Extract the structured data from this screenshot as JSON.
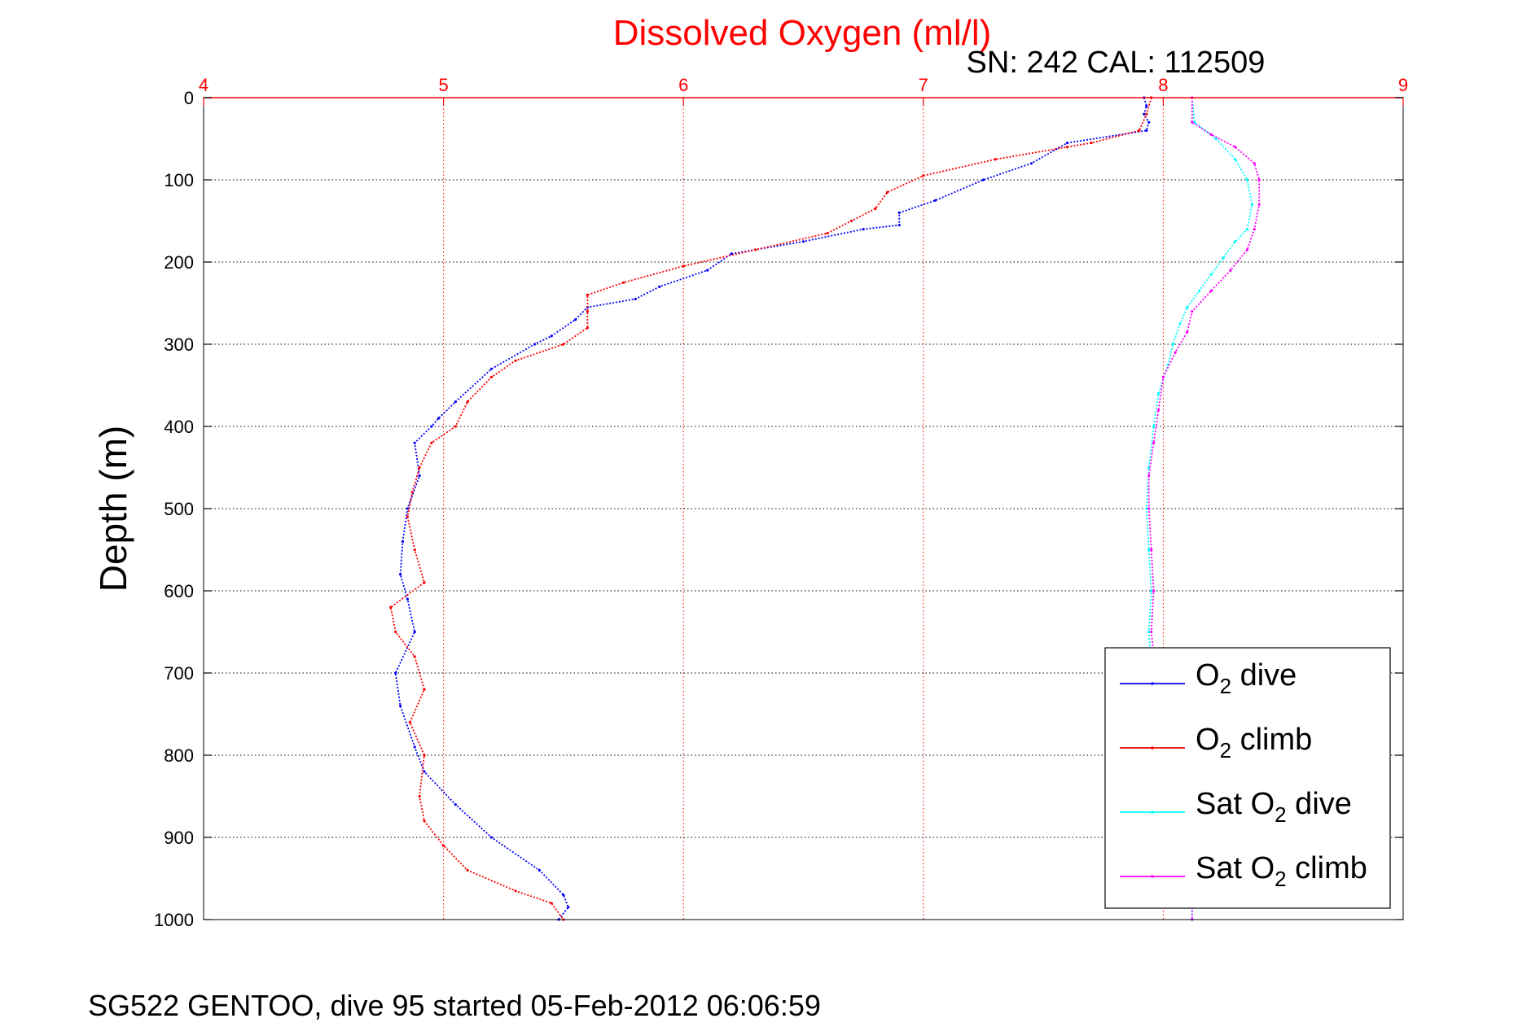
{
  "chart_data": {
    "type": "line",
    "title": "Dissolved Oxygen (ml/l)",
    "subtitle": "SN: 242  CAL: 112509",
    "ylabel": "Depth (m)",
    "footer": "SG522 GENTOO, dive 95 started 05-Feb-2012 06:06:59",
    "xlim": [
      4,
      9
    ],
    "ylim": [
      0,
      1000
    ],
    "y_reversed": true,
    "x_axis_position": "top",
    "xticks": [
      4,
      5,
      6,
      7,
      8,
      9
    ],
    "yticks": [
      0,
      100,
      200,
      300,
      400,
      500,
      600,
      700,
      800,
      900,
      1000
    ],
    "grid": true,
    "legend_position": "bottom-right",
    "series": [
      {
        "name": "O2 dive",
        "legend_main": "O",
        "legend_sub": "2",
        "legend_rest": " dive",
        "color": "#0000ff",
        "points": [
          [
            7.92,
            0
          ],
          [
            7.93,
            10
          ],
          [
            7.92,
            20
          ],
          [
            7.94,
            30
          ],
          [
            7.93,
            40
          ],
          [
            7.6,
            55
          ],
          [
            7.45,
            80
          ],
          [
            7.25,
            100
          ],
          [
            7.05,
            125
          ],
          [
            6.9,
            140
          ],
          [
            6.9,
            155
          ],
          [
            6.75,
            160
          ],
          [
            6.5,
            175
          ],
          [
            6.2,
            190
          ],
          [
            6.1,
            210
          ],
          [
            5.9,
            230
          ],
          [
            5.8,
            245
          ],
          [
            5.6,
            255
          ],
          [
            5.55,
            270
          ],
          [
            5.45,
            290
          ],
          [
            5.38,
            300
          ],
          [
            5.2,
            330
          ],
          [
            5.05,
            370
          ],
          [
            4.98,
            390
          ],
          [
            4.95,
            400
          ],
          [
            4.88,
            420
          ],
          [
            4.9,
            460
          ],
          [
            4.85,
            500
          ],
          [
            4.83,
            540
          ],
          [
            4.82,
            580
          ],
          [
            4.85,
            610
          ],
          [
            4.88,
            650
          ],
          [
            4.8,
            700
          ],
          [
            4.82,
            740
          ],
          [
            4.88,
            790
          ],
          [
            4.92,
            820
          ],
          [
            5.05,
            860
          ],
          [
            5.2,
            900
          ],
          [
            5.4,
            940
          ],
          [
            5.5,
            970
          ],
          [
            5.52,
            985
          ],
          [
            5.48,
            1000
          ]
        ]
      },
      {
        "name": "O2 climb",
        "legend_main": "O",
        "legend_sub": "2",
        "legend_rest": " climb",
        "color": "#ff0000",
        "points": [
          [
            7.95,
            0
          ],
          [
            7.93,
            20
          ],
          [
            7.9,
            40
          ],
          [
            7.7,
            55
          ],
          [
            7.6,
            60
          ],
          [
            7.3,
            75
          ],
          [
            7.0,
            95
          ],
          [
            6.85,
            115
          ],
          [
            6.8,
            135
          ],
          [
            6.7,
            150
          ],
          [
            6.6,
            165
          ],
          [
            6.3,
            185
          ],
          [
            6.0,
            205
          ],
          [
            5.75,
            225
          ],
          [
            5.6,
            240
          ],
          [
            5.6,
            260
          ],
          [
            5.6,
            280
          ],
          [
            5.5,
            300
          ],
          [
            5.3,
            320
          ],
          [
            5.2,
            340
          ],
          [
            5.1,
            370
          ],
          [
            5.05,
            400
          ],
          [
            4.95,
            420
          ],
          [
            4.9,
            450
          ],
          [
            4.87,
            480
          ],
          [
            4.85,
            510
          ],
          [
            4.88,
            550
          ],
          [
            4.92,
            590
          ],
          [
            4.78,
            620
          ],
          [
            4.8,
            650
          ],
          [
            4.88,
            680
          ],
          [
            4.92,
            720
          ],
          [
            4.86,
            760
          ],
          [
            4.92,
            800
          ],
          [
            4.9,
            850
          ],
          [
            4.92,
            880
          ],
          [
            5.0,
            910
          ],
          [
            5.1,
            940
          ],
          [
            5.3,
            965
          ],
          [
            5.45,
            980
          ],
          [
            5.5,
            1000
          ]
        ]
      },
      {
        "name": "Sat O2 dive",
        "legend_main": "Sat O",
        "legend_sub": "2",
        "legend_rest": " dive",
        "color": "#00ffff",
        "points": [
          [
            8.12,
            0
          ],
          [
            8.13,
            30
          ],
          [
            8.22,
            50
          ],
          [
            8.3,
            75
          ],
          [
            8.35,
            100
          ],
          [
            8.37,
            130
          ],
          [
            8.35,
            160
          ],
          [
            8.3,
            175
          ],
          [
            8.25,
            195
          ],
          [
            8.2,
            215
          ],
          [
            8.15,
            235
          ],
          [
            8.1,
            255
          ],
          [
            8.07,
            275
          ],
          [
            8.04,
            300
          ],
          [
            8.02,
            325
          ],
          [
            7.98,
            360
          ],
          [
            7.96,
            400
          ],
          [
            7.94,
            450
          ],
          [
            7.93,
            500
          ],
          [
            7.94,
            550
          ],
          [
            7.95,
            600
          ],
          [
            7.94,
            650
          ],
          [
            7.95,
            700
          ],
          [
            8.0,
            750
          ],
          [
            8.05,
            800
          ],
          [
            8.08,
            850
          ],
          [
            8.1,
            900
          ],
          [
            8.12,
            950
          ],
          [
            8.12,
            1000
          ]
        ]
      },
      {
        "name": "Sat O2 climb",
        "legend_main": "Sat O",
        "legend_sub": "2",
        "legend_rest": " climb",
        "color": "#ff00ff",
        "points": [
          [
            8.12,
            0
          ],
          [
            8.12,
            30
          ],
          [
            8.2,
            45
          ],
          [
            8.3,
            60
          ],
          [
            8.38,
            80
          ],
          [
            8.4,
            100
          ],
          [
            8.4,
            130
          ],
          [
            8.38,
            160
          ],
          [
            8.35,
            185
          ],
          [
            8.28,
            210
          ],
          [
            8.2,
            235
          ],
          [
            8.12,
            260
          ],
          [
            8.1,
            285
          ],
          [
            8.05,
            310
          ],
          [
            8.0,
            340
          ],
          [
            7.98,
            380
          ],
          [
            7.96,
            420
          ],
          [
            7.94,
            460
          ],
          [
            7.94,
            500
          ],
          [
            7.95,
            550
          ],
          [
            7.96,
            600
          ],
          [
            7.95,
            650
          ],
          [
            7.97,
            700
          ],
          [
            8.02,
            750
          ],
          [
            8.06,
            800
          ],
          [
            8.09,
            850
          ],
          [
            8.11,
            900
          ],
          [
            8.12,
            950
          ],
          [
            8.12,
            1000
          ]
        ]
      }
    ]
  }
}
